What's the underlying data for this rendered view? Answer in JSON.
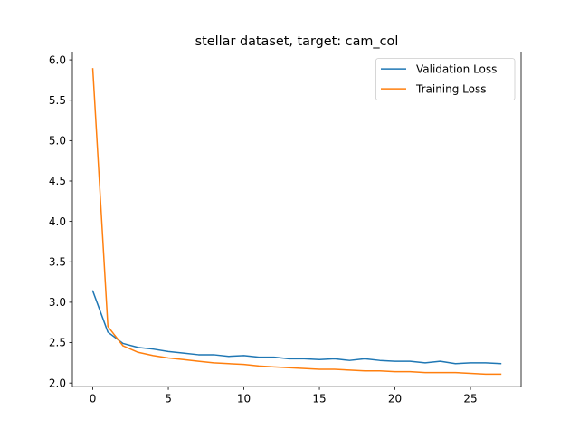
{
  "chart_data": {
    "type": "line",
    "title": "stellar dataset, target: cam_col",
    "xlabel": "",
    "ylabel": "",
    "xlim": [
      -1.35,
      28.35
    ],
    "ylim": [
      1.955,
      6.095
    ],
    "xticks": [
      0,
      5,
      10,
      15,
      20,
      25
    ],
    "xtick_labels": [
      "0",
      "5",
      "10",
      "15",
      "20",
      "25"
    ],
    "yticks": [
      2.0,
      2.5,
      3.0,
      3.5,
      4.0,
      4.5,
      5.0,
      5.5,
      6.0
    ],
    "ytick_labels": [
      "2.0",
      "2.5",
      "3.0",
      "3.5",
      "4.0",
      "4.5",
      "5.0",
      "5.5",
      "6.0"
    ],
    "grid": false,
    "legend_position": "upper-right",
    "x": [
      0,
      1,
      2,
      3,
      4,
      5,
      6,
      7,
      8,
      9,
      10,
      11,
      12,
      13,
      14,
      15,
      16,
      17,
      18,
      19,
      20,
      21,
      22,
      23,
      24,
      25,
      26,
      27
    ],
    "series": [
      {
        "name": "Validation Loss",
        "color": "#1f77b4",
        "values": [
          3.14,
          2.63,
          2.49,
          2.44,
          2.42,
          2.39,
          2.37,
          2.35,
          2.35,
          2.33,
          2.34,
          2.32,
          2.32,
          2.3,
          2.3,
          2.29,
          2.3,
          2.28,
          2.3,
          2.28,
          2.27,
          2.27,
          2.25,
          2.27,
          2.24,
          2.25,
          2.25,
          2.24
        ]
      },
      {
        "name": "Training Loss",
        "color": "#ff7f0e",
        "values": [
          5.89,
          2.7,
          2.46,
          2.38,
          2.34,
          2.31,
          2.29,
          2.27,
          2.25,
          2.24,
          2.23,
          2.21,
          2.2,
          2.19,
          2.18,
          2.17,
          2.17,
          2.16,
          2.15,
          2.15,
          2.14,
          2.14,
          2.13,
          2.13,
          2.13,
          2.12,
          2.11,
          2.11
        ]
      }
    ]
  }
}
